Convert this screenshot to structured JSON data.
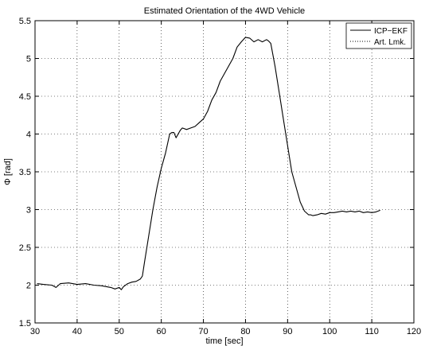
{
  "chart_data": {
    "type": "line",
    "title": "Estimated Orientation of the 4WD Vehicle",
    "xlabel": "time [sec]",
    "ylabel": "Φ [rad]",
    "xlim": [
      30,
      120
    ],
    "ylim": [
      1.5,
      5.5
    ],
    "xticks": [
      "30",
      "40",
      "50",
      "60",
      "70",
      "80",
      "90",
      "100",
      "110",
      "120"
    ],
    "yticks": [
      "1.5",
      "2",
      "2.5",
      "3",
      "3.5",
      "4",
      "4.5",
      "5",
      "5.5"
    ],
    "grid": true,
    "legend_position": "top-right",
    "series": [
      {
        "name": "ICP−EKF",
        "style": "solid",
        "color": "#000000",
        "x": [
          30.5,
          32,
          34,
          35,
          36,
          38,
          40,
          42,
          44,
          46,
          48,
          49,
          50,
          50.5,
          51,
          52,
          53,
          54,
          55,
          55.5,
          56,
          57,
          58,
          59,
          60,
          61,
          62,
          62.5,
          63,
          63.5,
          64,
          64.5,
          65,
          66,
          67,
          68,
          69,
          70,
          71,
          72,
          73,
          74,
          75,
          76,
          77,
          78,
          79,
          80,
          81,
          82,
          83,
          84,
          85,
          85.5,
          86,
          87,
          88,
          89,
          90,
          91,
          92,
          93,
          94,
          95,
          95.5,
          96,
          97,
          98,
          99,
          100,
          101,
          102,
          103,
          104,
          105,
          106,
          107,
          108,
          109,
          110,
          111,
          112
        ],
        "y": [
          2.02,
          2.01,
          2.0,
          1.97,
          2.02,
          2.03,
          2.01,
          2.02,
          2.0,
          1.99,
          1.97,
          1.95,
          1.97,
          1.94,
          1.98,
          2.02,
          2.04,
          2.05,
          2.08,
          2.12,
          2.3,
          2.65,
          3.0,
          3.3,
          3.55,
          3.75,
          4.0,
          4.02,
          4.02,
          3.95,
          4.0,
          4.05,
          4.08,
          4.06,
          4.08,
          4.1,
          4.15,
          4.2,
          4.3,
          4.45,
          4.55,
          4.7,
          4.8,
          4.9,
          5.0,
          5.15,
          5.22,
          5.28,
          5.27,
          5.22,
          5.25,
          5.22,
          5.25,
          5.23,
          5.2,
          4.9,
          4.55,
          4.2,
          3.85,
          3.5,
          3.3,
          3.1,
          2.98,
          2.93,
          2.93,
          2.92,
          2.93,
          2.95,
          2.94,
          2.96,
          2.96,
          2.97,
          2.98,
          2.97,
          2.98,
          2.97,
          2.98,
          2.96,
          2.97,
          2.96,
          2.97,
          2.99
        ]
      },
      {
        "name": "Art. Lmk.",
        "style": "dotted",
        "color": "#000000",
        "x": [],
        "y": []
      }
    ]
  }
}
